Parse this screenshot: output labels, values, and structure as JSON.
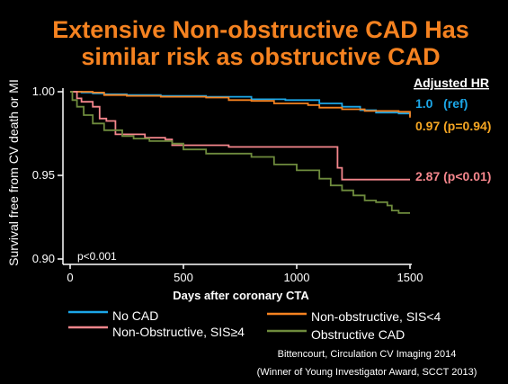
{
  "slide": {
    "title_line1": "Extensive Non-obstructive CAD Has",
    "title_line2": "similar risk as obstructive CAD",
    "title_color": "#F58220",
    "text_color": "#FFFFFF",
    "citation_line1": "Bittencourt, Circulation CV Imaging 2014",
    "citation_line2": "(Winner of Young Investigator Award, SCCT 2013)"
  },
  "hr_panel": {
    "header": "Adjusted HR",
    "rows": [
      {
        "text": "1.0   (ref)",
        "color": "#1CA7E8"
      },
      {
        "text": "0.97 (p=0.94)",
        "color": "#F5A623"
      },
      {
        "text": "2.87 (p<0.01)",
        "color": "#F4868C"
      }
    ]
  },
  "chart_data": {
    "type": "line",
    "step": true,
    "xlabel": "Days after coronary CTA",
    "ylabel": "Survival free from CV death or MI",
    "xlim": [
      0,
      1500
    ],
    "ylim": [
      0.9,
      1.0
    ],
    "xticks": [
      0,
      500,
      1000,
      1500
    ],
    "yticks": [
      0.9,
      0.95,
      1.0
    ],
    "ytick_labels": [
      "0.90",
      "0.95",
      "1.00"
    ],
    "annotation": "p<0.001",
    "grid": false,
    "legend_position": "bottom",
    "series": [
      {
        "name": "No CAD",
        "color": "#1CA7E8",
        "x": [
          0,
          50,
          100,
          150,
          250,
          400,
          600,
          800,
          950,
          1100,
          1200,
          1280,
          1350,
          1450,
          1500
        ],
        "y": [
          1.0,
          0.9995,
          0.999,
          0.9985,
          0.998,
          0.9975,
          0.997,
          0.9955,
          0.995,
          0.993,
          0.991,
          0.989,
          0.9875,
          0.987,
          0.9855
        ]
      },
      {
        "name": "Non-obstructive, SIS<4",
        "color": "#F58220",
        "x": [
          0,
          100,
          150,
          250,
          400,
          600,
          700,
          800,
          900,
          1050,
          1100,
          1200,
          1300,
          1450,
          1500
        ],
        "y": [
          1.0,
          0.9995,
          0.998,
          0.9975,
          0.997,
          0.9965,
          0.995,
          0.9945,
          0.993,
          0.992,
          0.9905,
          0.9895,
          0.9885,
          0.988,
          0.9845
        ]
      },
      {
        "name": "Non-Obstructive, SIS≥4",
        "color": "#F4868C",
        "x": [
          0,
          30,
          50,
          100,
          130,
          160,
          200,
          330,
          420,
          450,
          700,
          1180,
          1200,
          1500
        ],
        "y": [
          1.0,
          0.996,
          0.994,
          0.991,
          0.984,
          0.9825,
          0.9745,
          0.9725,
          0.9715,
          0.968,
          0.967,
          0.9545,
          0.9475,
          0.9475
        ]
      },
      {
        "name": "Obstructive CAD",
        "color": "#6E8B3D",
        "x": [
          0,
          10,
          30,
          60,
          100,
          150,
          230,
          280,
          350,
          450,
          500,
          600,
          800,
          900,
          1000,
          1100,
          1150,
          1200,
          1250,
          1300,
          1350,
          1400,
          1420,
          1450,
          1500
        ],
        "y": [
          1.0,
          0.995,
          0.991,
          0.986,
          0.981,
          0.977,
          0.9735,
          0.972,
          0.9705,
          0.969,
          0.9655,
          0.963,
          0.961,
          0.9565,
          0.953,
          0.948,
          0.944,
          0.941,
          0.938,
          0.935,
          0.934,
          0.932,
          0.929,
          0.9275,
          0.9275
        ]
      }
    ]
  }
}
